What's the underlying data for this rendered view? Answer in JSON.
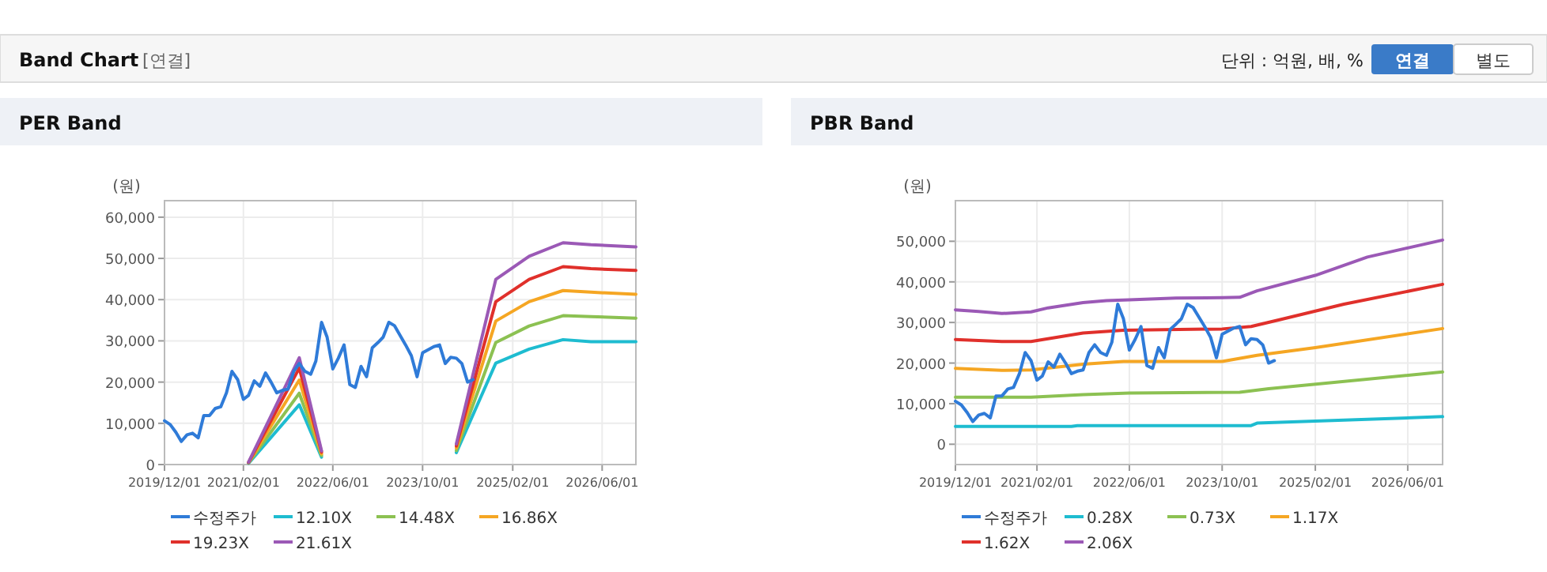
{
  "chart_data": [
    {
      "type": "other",
      "title": "Band Chart",
      "annotations": [
        "[연결]",
        "단위 : 억원, 배, %",
        "연결",
        "별도"
      ]
    },
    {
      "type": "line",
      "title": "PER Band",
      "ylabel": "(원)",
      "grid": true,
      "legend": "bottom",
      "marker": "none",
      "line_style": "solid",
      "xlim": [
        "2019-12-01",
        "2026-12-01"
      ],
      "ylim": [
        0,
        64000
      ],
      "xticks": [
        {
          "value": "2019-12-01",
          "label": "2019/12/01"
        },
        {
          "value": "2021-02-01",
          "label": "2021/02/01"
        },
        {
          "value": "2022-06-01",
          "label": "2022/06/01"
        },
        {
          "value": "2023-10-01",
          "label": "2023/10/01"
        },
        {
          "value": "2025-02-01",
          "label": "2025/02/01"
        },
        {
          "value": "2026-06-01",
          "label": "2026/06/01"
        }
      ],
      "yticks": [
        0,
        {
          "value": 10000,
          "label": "10,000"
        },
        {
          "value": 20000,
          "label": "20,000"
        },
        {
          "value": 30000,
          "label": "30,000"
        },
        {
          "value": 40000,
          "label": "40,000"
        },
        {
          "value": 50000,
          "label": "50,000"
        },
        {
          "value": 60000,
          "label": "60,000"
        }
      ],
      "series": [
        {
          "name": "수정주가",
          "color": "#2f7bd8",
          "x": [
            "2019-12",
            "2020-01",
            "2020-02",
            "2020-03",
            "2020-04",
            "2020-05",
            "2020-06",
            "2020-07",
            "2020-08",
            "2020-09",
            "2020-10",
            "2020-11",
            "2020-12",
            "2021-01",
            "2021-02",
            "2021-03",
            "2021-04",
            "2021-05",
            "2021-06",
            "2021-07",
            "2021-08",
            "2021-09",
            "2021-10",
            "2021-11",
            "2021-12",
            "2022-01",
            "2022-02",
            "2022-03",
            "2022-04",
            "2022-05",
            "2022-06",
            "2022-07",
            "2022-08",
            "2022-09",
            "2022-10",
            "2022-11",
            "2022-12",
            "2023-01",
            "2023-02",
            "2023-03",
            "2023-04",
            "2023-05",
            "2023-07",
            "2023-08",
            "2023-09",
            "2023-10",
            "2023-12",
            "2024-01",
            "2024-02",
            "2024-03",
            "2024-04",
            "2024-05",
            "2024-06",
            "2024-07"
          ],
          "values": [
            10600,
            9700,
            7800,
            5600,
            7200,
            7600,
            6500,
            11900,
            11900,
            13600,
            14000,
            17400,
            22600,
            20600,
            15800,
            16800,
            20300,
            19000,
            22200,
            20000,
            17400,
            18000,
            18300,
            22600,
            24500,
            22600,
            21900,
            25100,
            34500,
            30900,
            23200,
            25800,
            29000,
            19400,
            18700,
            23800,
            21300,
            28300,
            29600,
            30900,
            34500,
            33700,
            29000,
            26400,
            21300,
            27100,
            28600,
            29000,
            24500,
            26000,
            25800,
            24500,
            20000,
            20600
          ]
        },
        {
          "name": "12.10X",
          "color": "#1ebcd0",
          "x": [
            "2021-03",
            "2021-12",
            "2022-04"
          ],
          "values": [
            300,
            14500,
            1800
          ]
        },
        {
          "name": "14.48X",
          "color": "#8cc152",
          "x": [
            "2021-03",
            "2021-12",
            "2022-04"
          ],
          "values": [
            400,
            17300,
            2200
          ]
        },
        {
          "name": "16.86X",
          "color": "#f5a623",
          "x": [
            "2021-03",
            "2021-12",
            "2022-04"
          ],
          "values": [
            500,
            20500,
            2600
          ]
        },
        {
          "name": "19.23X",
          "color": "#e0302b",
          "x": [
            "2021-03",
            "2021-12",
            "2022-04"
          ],
          "values": [
            500,
            23400,
            3000
          ]
        },
        {
          "name": "21.61X",
          "color": "#9b59b6",
          "x": [
            "2021-03",
            "2021-12",
            "2022-04"
          ],
          "values": [
            600,
            25900,
            3300
          ]
        },
        {
          "color": "#1ebcd0",
          "x": [
            "2024-04",
            "2024-11",
            "2025-05",
            "2025-11",
            "2026-04",
            "2026-12"
          ],
          "values": [
            2900,
            24600,
            28000,
            30300,
            29800,
            29800
          ]
        },
        {
          "color": "#8cc152",
          "x": [
            "2024-04",
            "2024-11",
            "2025-05",
            "2025-11",
            "2026-04",
            "2026-12"
          ],
          "values": [
            3400,
            29600,
            33600,
            36100,
            35900,
            35500
          ]
        },
        {
          "color": "#f5a623",
          "x": [
            "2024-04",
            "2024-11",
            "2025-05",
            "2025-11",
            "2026-04",
            "2026-12"
          ],
          "values": [
            4000,
            34800,
            39500,
            42200,
            41800,
            41300
          ]
        },
        {
          "color": "#e0302b",
          "x": [
            "2024-04",
            "2024-11",
            "2025-05",
            "2025-11",
            "2026-04",
            "2026-12"
          ],
          "values": [
            4500,
            39500,
            44900,
            48000,
            47500,
            47100
          ]
        },
        {
          "color": "#9b59b6",
          "x": [
            "2024-04",
            "2024-11",
            "2025-05",
            "2025-11",
            "2026-04",
            "2026-12"
          ],
          "values": [
            5000,
            44900,
            50500,
            53800,
            53300,
            52800
          ]
        }
      ]
    },
    {
      "type": "line",
      "title": "PBR Band",
      "ylabel": "(원)",
      "grid": true,
      "legend": "bottom",
      "marker": "none",
      "line_style": "solid",
      "xlim": [
        "2019-12-01",
        "2026-12-01"
      ],
      "ylim": [
        -5000,
        60000
      ],
      "xticks": [
        {
          "value": "2019-12-01",
          "label": "2019/12/01"
        },
        {
          "value": "2021-02-01",
          "label": "2021/02/01"
        },
        {
          "value": "2022-06-01",
          "label": "2022/06/01"
        },
        {
          "value": "2023-10-01",
          "label": "2023/10/01"
        },
        {
          "value": "2025-02-01",
          "label": "2025/02/01"
        },
        {
          "value": "2026-06-01",
          "label": "2026/06/01"
        }
      ],
      "yticks": [
        0,
        {
          "value": 10000,
          "label": "10,000"
        },
        {
          "value": 20000,
          "label": "20,000"
        },
        {
          "value": 30000,
          "label": "30,000"
        },
        {
          "value": 40000,
          "label": "40,000"
        },
        {
          "value": 50000,
          "label": "50,000"
        }
      ],
      "series": [
        {
          "name": "수정주가",
          "color": "#2f7bd8",
          "x": [
            "2019-12",
            "2020-01",
            "2020-02",
            "2020-03",
            "2020-04",
            "2020-05",
            "2020-06",
            "2020-07",
            "2020-08",
            "2020-09",
            "2020-10",
            "2020-11",
            "2020-12",
            "2021-01",
            "2021-02",
            "2021-03",
            "2021-04",
            "2021-05",
            "2021-06",
            "2021-07",
            "2021-08",
            "2021-09",
            "2021-10",
            "2021-11",
            "2021-12",
            "2022-01",
            "2022-02",
            "2022-03",
            "2022-04",
            "2022-05",
            "2022-06",
            "2022-07",
            "2022-08",
            "2022-09",
            "2022-10",
            "2022-11",
            "2022-12",
            "2023-01",
            "2023-02",
            "2023-03",
            "2023-04",
            "2023-05",
            "2023-07",
            "2023-08",
            "2023-09",
            "2023-10",
            "2023-12",
            "2024-01",
            "2024-02",
            "2024-03",
            "2024-04",
            "2024-05",
            "2024-06",
            "2024-07"
          ],
          "values": [
            10600,
            9700,
            7800,
            5600,
            7200,
            7600,
            6500,
            11900,
            11900,
            13600,
            14000,
            17400,
            22600,
            20600,
            15800,
            16800,
            20300,
            19000,
            22200,
            20000,
            17400,
            18000,
            18300,
            22600,
            24500,
            22600,
            21900,
            25100,
            34500,
            30900,
            23200,
            25800,
            29000,
            19400,
            18700,
            23800,
            21300,
            28300,
            29600,
            30900,
            34500,
            33700,
            29000,
            26400,
            21300,
            27100,
            28600,
            29000,
            24500,
            26000,
            25800,
            24500,
            20000,
            20600
          ]
        },
        {
          "name": "0.28X",
          "color": "#1ebcd0",
          "x": [
            "2019-12",
            "2021-08",
            "2021-09",
            "2024-03",
            "2024-04",
            "2026-12"
          ],
          "values": [
            4400,
            4400,
            4600,
            4600,
            5200,
            6800
          ]
        },
        {
          "name": "0.73X",
          "color": "#8cc152",
          "x": [
            "2019-12",
            "2021-01",
            "2021-10",
            "2022-06",
            "2024-01",
            "2024-06",
            "2026-12"
          ],
          "values": [
            11600,
            11600,
            12200,
            12600,
            12800,
            13700,
            17800
          ]
        },
        {
          "name": "1.17X",
          "color": "#f5a623",
          "x": [
            "2019-12",
            "2020-08",
            "2021-01",
            "2021-10",
            "2022-05",
            "2023-10",
            "2024-04",
            "2025-02",
            "2026-12"
          ],
          "values": [
            18700,
            18200,
            18300,
            19700,
            20400,
            20400,
            21900,
            23800,
            28500
          ]
        },
        {
          "name": "1.62X",
          "color": "#e0302b",
          "x": [
            "2019-12",
            "2020-08",
            "2021-01",
            "2021-10",
            "2022-05",
            "2023-10",
            "2024-03",
            "2024-08",
            "2025-07",
            "2026-12"
          ],
          "values": [
            25800,
            25300,
            25300,
            27400,
            28100,
            28400,
            29000,
            30700,
            34500,
            39400
          ]
        },
        {
          "name": "2.06X",
          "color": "#9b59b6",
          "x": [
            "2019-12",
            "2020-04",
            "2020-08",
            "2021-01",
            "2021-04",
            "2021-10",
            "2022-02",
            "2022-06",
            "2023-02",
            "2023-10",
            "2024-01",
            "2024-04",
            "2025-02",
            "2025-11",
            "2026-12"
          ],
          "values": [
            33100,
            32700,
            32200,
            32600,
            33600,
            34900,
            35400,
            35600,
            36000,
            36100,
            36200,
            37800,
            41600,
            46100,
            50300
          ]
        }
      ]
    }
  ]
}
